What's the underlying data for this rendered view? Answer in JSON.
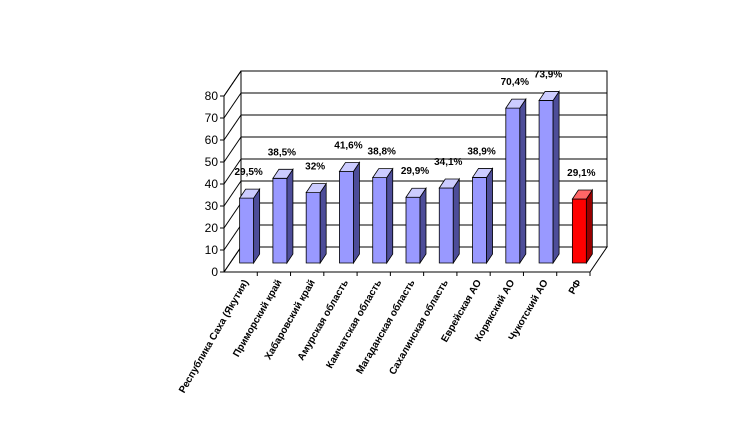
{
  "chart_data": {
    "type": "bar",
    "title": "",
    "xlabel": "",
    "ylabel": "",
    "ylim": [
      0,
      80
    ],
    "yticks": [
      0,
      10,
      20,
      30,
      40,
      50,
      60,
      70,
      80
    ],
    "grid": true,
    "legend": "none",
    "three_d": true,
    "categories": [
      "Республика Саха (Якутия)",
      "Приморский край",
      "Хабаровский край",
      "Амурская область",
      "Камчатская область",
      "Магаданская область",
      "Сахалинская область",
      "Еврейская АО",
      "Корякский АО",
      "Чукотский АО",
      "РФ"
    ],
    "values": [
      29.5,
      38.5,
      32,
      41.6,
      38.8,
      29.9,
      34.1,
      38.9,
      70.4,
      73.9,
      29.1
    ],
    "data_labels": [
      "29,5%",
      "38,5%",
      "32%",
      "41,6%",
      "38,8%",
      "29,9%",
      "34,1%",
      "38,9%",
      "70,4%",
      "73,9%",
      "29,1%"
    ],
    "colors": {
      "bar_front": "#9999ff",
      "bar_side": "#4d4d99",
      "bar_top": "#ccccff",
      "highlight_front": "#ff0000",
      "highlight_side": "#990000",
      "highlight_top": "#ff6666",
      "highlight_index": 10,
      "grid": "#000000"
    }
  }
}
